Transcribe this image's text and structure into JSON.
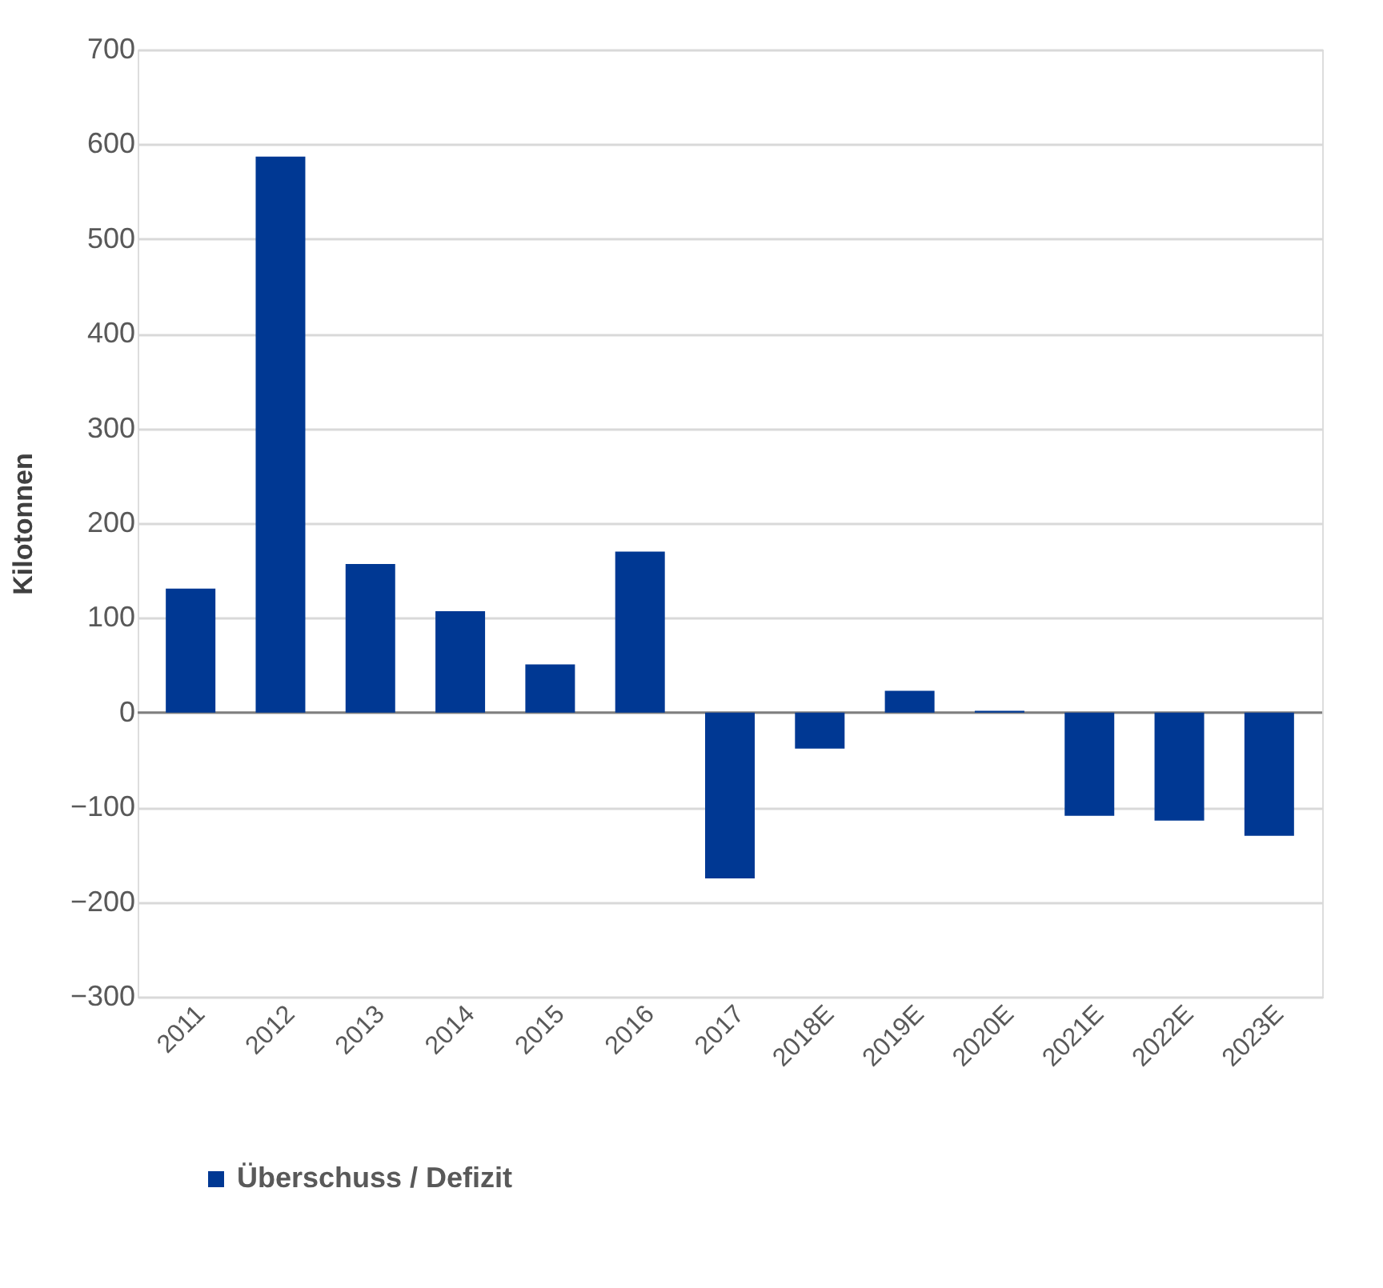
{
  "chart_data": {
    "type": "bar",
    "ylabel": "Kilotonnen",
    "categories": [
      "2011",
      "2012",
      "2013",
      "2014",
      "2015",
      "2016",
      "2017",
      "2018E",
      "2019E",
      "2020E",
      "2021E",
      "2022E",
      "2023E"
    ],
    "series": [
      {
        "name": "Überschuss / Defizit",
        "color": "#003893",
        "values": [
          131,
          587,
          157,
          107,
          51,
          170,
          -175,
          -38,
          23,
          2,
          -109,
          -114,
          -130
        ]
      }
    ],
    "ylim": [
      -300,
      700
    ],
    "yticks": [
      -300,
      -200,
      -100,
      0,
      100,
      200,
      300,
      400,
      500,
      600,
      700
    ],
    "grid": "y",
    "legend": "bottom"
  }
}
